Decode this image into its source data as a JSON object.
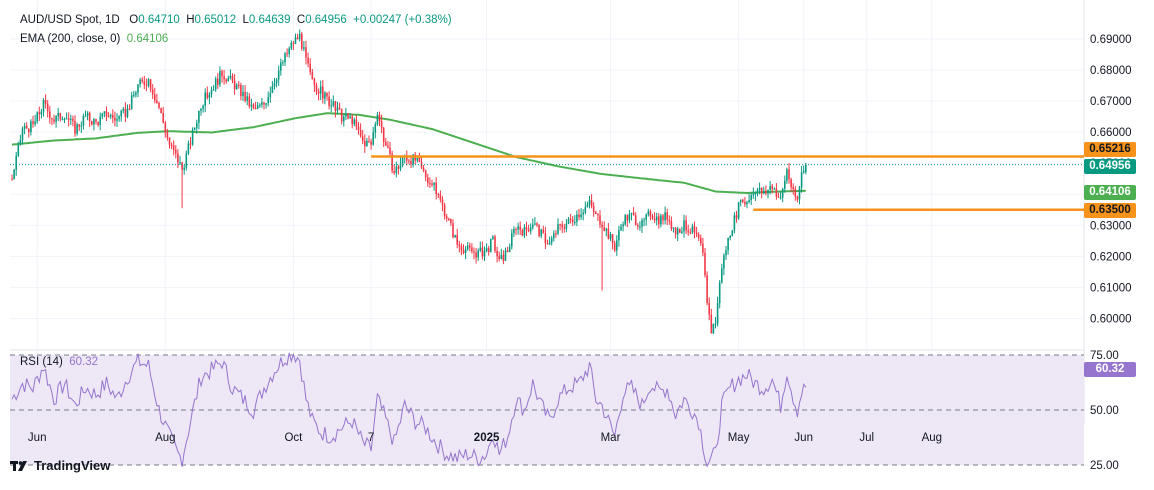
{
  "chart_data": {
    "type": "candlestick",
    "symbol": "AUD/USD Spot, 1D",
    "ohlc_label": {
      "o_label": "O",
      "o": "0.64710",
      "h_label": "H",
      "h": "0.65012",
      "l_label": "L",
      "l": "0.64639",
      "c_label": "C",
      "c": "0.64956",
      "change": "+0.00247 (+0.38%)"
    },
    "ema_label": "EMA (200, close, 0)",
    "ema_value": "0.64106",
    "y_ticks": [
      "0.69000",
      "0.68000",
      "0.67000",
      "0.66000",
      "0.65000",
      "0.64000",
      "0.63000",
      "0.62000",
      "0.61000",
      "0.60000"
    ],
    "y_tick_values": [
      0.69,
      0.68,
      0.67,
      0.66,
      0.65,
      0.64,
      0.63,
      0.62,
      0.61,
      0.6
    ],
    "ylim": [
      0.5965,
      0.6945
    ],
    "x_ticks": [
      {
        "label": "Jun",
        "day": 12,
        "bold": false
      },
      {
        "label": "Aug",
        "day": 73,
        "bold": false
      },
      {
        "label": "Oct",
        "day": 134,
        "bold": false
      },
      {
        "label": "7",
        "day": 171,
        "bold": false
      },
      {
        "label": "2025",
        "day": 226,
        "bold": true
      },
      {
        "label": "Mar",
        "day": 285,
        "bold": false
      },
      {
        "label": "May",
        "day": 346,
        "bold": false
      },
      {
        "label": "Jun",
        "day": 377,
        "bold": false
      },
      {
        "label": "Jul",
        "day": 407,
        "bold": false
      },
      {
        "label": "Aug",
        "day": 438,
        "bold": false
      }
    ],
    "anchors": [
      [
        0,
        0.645
      ],
      [
        5,
        0.661
      ],
      [
        10,
        0.662
      ],
      [
        15,
        0.669
      ],
      [
        20,
        0.664
      ],
      [
        25,
        0.666
      ],
      [
        30,
        0.661
      ],
      [
        35,
        0.665
      ],
      [
        40,
        0.663
      ],
      [
        45,
        0.666
      ],
      [
        50,
        0.664
      ],
      [
        55,
        0.667
      ],
      [
        60,
        0.675
      ],
      [
        65,
        0.677
      ],
      [
        70,
        0.668
      ],
      [
        75,
        0.656
      ],
      [
        79,
        0.651
      ],
      [
        81,
        0.648
      ],
      [
        85,
        0.657
      ],
      [
        90,
        0.669
      ],
      [
        95,
        0.674
      ],
      [
        100,
        0.679
      ],
      [
        105,
        0.676
      ],
      [
        110,
        0.672
      ],
      [
        115,
        0.667
      ],
      [
        120,
        0.669
      ],
      [
        125,
        0.677
      ],
      [
        130,
        0.684
      ],
      [
        134,
        0.689
      ],
      [
        137,
        0.691
      ],
      [
        140,
        0.683
      ],
      [
        143,
        0.676
      ],
      [
        147,
        0.673
      ],
      [
        152,
        0.669
      ],
      [
        157,
        0.665
      ],
      [
        162,
        0.664
      ],
      [
        167,
        0.657
      ],
      [
        171,
        0.656
      ],
      [
        174,
        0.667
      ],
      [
        177,
        0.658
      ],
      [
        182,
        0.647
      ],
      [
        187,
        0.652
      ],
      [
        192,
        0.651
      ],
      [
        197,
        0.646
      ],
      [
        202,
        0.641
      ],
      [
        207,
        0.633
      ],
      [
        212,
        0.624
      ],
      [
        217,
        0.622
      ],
      [
        222,
        0.621
      ],
      [
        226,
        0.622
      ],
      [
        229,
        0.625
      ],
      [
        232,
        0.618
      ],
      [
        236,
        0.622
      ],
      [
        240,
        0.63
      ],
      [
        244,
        0.628
      ],
      [
        248,
        0.631
      ],
      [
        252,
        0.627
      ],
      [
        256,
        0.624
      ],
      [
        260,
        0.629
      ],
      [
        265,
        0.631
      ],
      [
        270,
        0.634
      ],
      [
        275,
        0.637
      ],
      [
        278,
        0.633
      ],
      [
        281,
        0.631
      ],
      [
        284,
        0.627
      ],
      [
        287,
        0.623
      ],
      [
        291,
        0.632
      ],
      [
        295,
        0.633
      ],
      [
        300,
        0.63
      ],
      [
        304,
        0.634
      ],
      [
        308,
        0.632
      ],
      [
        312,
        0.633
      ],
      [
        316,
        0.628
      ],
      [
        320,
        0.63
      ],
      [
        324,
        0.628
      ],
      [
        327,
        0.625
      ],
      [
        329,
        0.62
      ],
      [
        331,
        0.606
      ],
      [
        333,
        0.596
      ],
      [
        335,
        0.599
      ],
      [
        338,
        0.617
      ],
      [
        342,
        0.628
      ],
      [
        346,
        0.636
      ],
      [
        350,
        0.638
      ],
      [
        354,
        0.642
      ],
      [
        358,
        0.64
      ],
      [
        362,
        0.643
      ],
      [
        366,
        0.638
      ],
      [
        369,
        0.648
      ],
      [
        372,
        0.64
      ],
      [
        374,
        0.638
      ],
      [
        376,
        0.647
      ],
      [
        378,
        0.6496
      ]
    ],
    "ema_anchors": [
      [
        0,
        0.656
      ],
      [
        20,
        0.6573
      ],
      [
        40,
        0.658
      ],
      [
        60,
        0.6598
      ],
      [
        75,
        0.6603
      ],
      [
        95,
        0.6599
      ],
      [
        115,
        0.6616
      ],
      [
        135,
        0.6645
      ],
      [
        150,
        0.6661
      ],
      [
        165,
        0.6656
      ],
      [
        180,
        0.664
      ],
      [
        200,
        0.661
      ],
      [
        220,
        0.6565
      ],
      [
        240,
        0.652
      ],
      [
        260,
        0.649
      ],
      [
        280,
        0.6466
      ],
      [
        300,
        0.6451
      ],
      [
        320,
        0.6437
      ],
      [
        335,
        0.6409
      ],
      [
        350,
        0.6404
      ],
      [
        366,
        0.6409
      ],
      [
        378,
        0.6411
      ]
    ],
    "last_index": 378,
    "resistance": {
      "value": 0.65216,
      "label": "0.65216",
      "from_day": 171
    },
    "support": {
      "value": 0.635,
      "label": "0.63500",
      "from_day": 353
    },
    "last_price": {
      "value": 0.64956,
      "label": "0.64956"
    },
    "ema_last": {
      "value": 0.64106,
      "label": "0.64106"
    },
    "rsi": {
      "label": "RSI (14)",
      "value_label": "60.32",
      "value": 60.32,
      "ylim": [
        18,
        78
      ],
      "levels": [
        75,
        50,
        25
      ],
      "tick_labels": [
        "75.00",
        "50.00",
        "25.00"
      ],
      "anchors": [
        [
          0,
          55
        ],
        [
          5,
          62
        ],
        [
          10,
          60
        ],
        [
          15,
          70
        ],
        [
          20,
          55
        ],
        [
          25,
          62
        ],
        [
          30,
          52
        ],
        [
          35,
          60
        ],
        [
          40,
          57
        ],
        [
          45,
          62
        ],
        [
          50,
          55
        ],
        [
          55,
          65
        ],
        [
          60,
          72
        ],
        [
          65,
          70
        ],
        [
          70,
          50
        ],
        [
          75,
          38
        ],
        [
          79,
          30
        ],
        [
          81,
          28
        ],
        [
          85,
          45
        ],
        [
          90,
          65
        ],
        [
          95,
          68
        ],
        [
          100,
          72
        ],
        [
          105,
          60
        ],
        [
          110,
          55
        ],
        [
          115,
          50
        ],
        [
          120,
          60
        ],
        [
          125,
          68
        ],
        [
          130,
          74
        ],
        [
          134,
          76
        ],
        [
          137,
          73
        ],
        [
          140,
          55
        ],
        [
          143,
          45
        ],
        [
          147,
          40
        ],
        [
          152,
          38
        ],
        [
          157,
          42
        ],
        [
          162,
          45
        ],
        [
          167,
          35
        ],
        [
          171,
          32
        ],
        [
          174,
          55
        ],
        [
          177,
          48
        ],
        [
          182,
          35
        ],
        [
          187,
          52
        ],
        [
          192,
          45
        ],
        [
          197,
          42
        ],
        [
          202,
          35
        ],
        [
          207,
          30
        ],
        [
          212,
          28
        ],
        [
          217,
          30
        ],
        [
          222,
          28
        ],
        [
          226,
          30
        ],
        [
          229,
          40
        ],
        [
          232,
          30
        ],
        [
          236,
          38
        ],
        [
          240,
          55
        ],
        [
          244,
          50
        ],
        [
          248,
          62
        ],
        [
          252,
          52
        ],
        [
          256,
          45
        ],
        [
          260,
          55
        ],
        [
          265,
          60
        ],
        [
          270,
          62
        ],
        [
          275,
          70
        ],
        [
          278,
          55
        ],
        [
          281,
          52
        ],
        [
          284,
          45
        ],
        [
          287,
          38
        ],
        [
          291,
          58
        ],
        [
          295,
          60
        ],
        [
          300,
          52
        ],
        [
          304,
          62
        ],
        [
          308,
          58
        ],
        [
          312,
          60
        ],
        [
          316,
          48
        ],
        [
          320,
          55
        ],
        [
          324,
          50
        ],
        [
          327,
          45
        ],
        [
          329,
          35
        ],
        [
          331,
          26
        ],
        [
          333,
          28
        ],
        [
          335,
          30
        ],
        [
          338,
          52
        ],
        [
          342,
          60
        ],
        [
          346,
          64
        ],
        [
          350,
          66
        ],
        [
          354,
          62
        ],
        [
          358,
          60
        ],
        [
          362,
          64
        ],
        [
          366,
          52
        ],
        [
          369,
          68
        ],
        [
          372,
          56
        ],
        [
          374,
          50
        ],
        [
          376,
          58
        ],
        [
          378,
          60.32
        ]
      ]
    }
  },
  "colors": {
    "up": "#089981",
    "down": "#f23645",
    "ema": "#4caf50",
    "level": "#f7931a",
    "rsi": "#9575cd",
    "rsi_band": "#ede7f6",
    "grid": "#f0f3fa",
    "text": "#131722"
  },
  "branding": {
    "label": "TradingView",
    "icon": "tradingview-logo-icon"
  }
}
